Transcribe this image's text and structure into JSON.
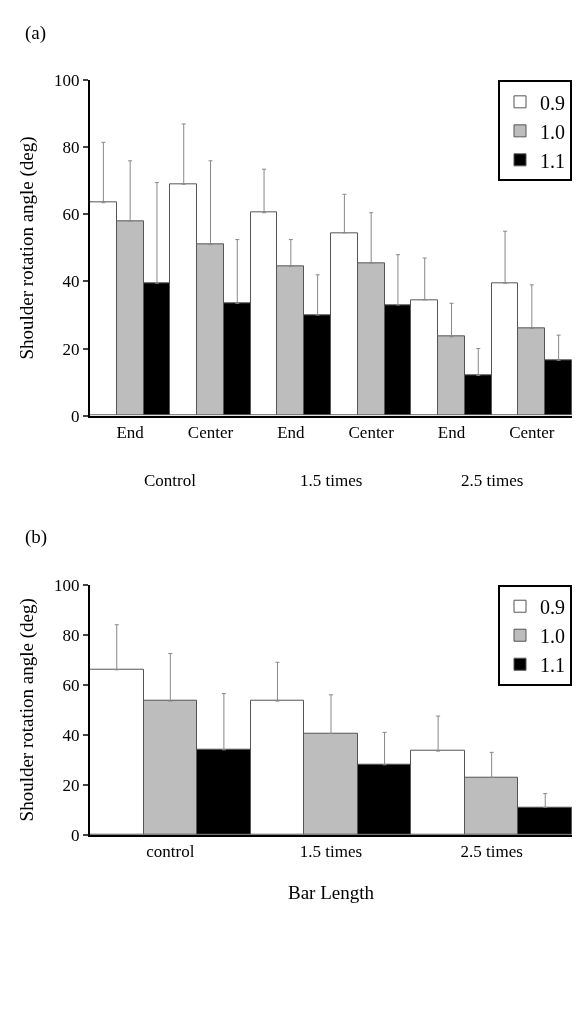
{
  "chart_data": [
    {
      "type": "bar",
      "title": "(a)",
      "ylabel": "Shoulder rotation angle (deg)",
      "categories": [
        "End",
        "Center",
        "End",
        "Center",
        "End",
        "Center"
      ],
      "series": [
        {
          "name": "0.9",
          "color": "#ffffff",
          "values": [
            63.5,
            69,
            60.5,
            54.5,
            34.5,
            39.5
          ],
          "errors": [
            [
              63.5,
              81.5
            ],
            [
              69,
              87
            ],
            [
              60.5,
              73.5
            ],
            [
              54.5,
              66
            ],
            [
              34.5,
              47
            ],
            [
              39.5,
              55
            ]
          ]
        },
        {
          "name": "1.0",
          "color": "#bdbdbd",
          "values": [
            58,
            51,
            44.5,
            45.5,
            23.5,
            26
          ],
          "errors": [
            [
              58,
              76
            ],
            [
              51,
              76
            ],
            [
              44.5,
              52.5
            ],
            [
              45.5,
              60.5
            ],
            [
              23.5,
              33.5
            ],
            [
              26,
              39
            ]
          ]
        },
        {
          "name": "1.1",
          "color": "#000000",
          "values": [
            39.5,
            33.5,
            30,
            33,
            12,
            16.5
          ],
          "errors": [
            [
              39.5,
              69.5
            ],
            [
              33.5,
              52.5
            ],
            [
              30,
              42
            ],
            [
              33,
              48
            ],
            [
              12,
              20
            ],
            [
              16.5,
              24
            ]
          ]
        }
      ],
      "annotations": [
        "Control",
        "1.5 times",
        "2.5 times"
      ],
      "ylim": [
        0,
        100
      ],
      "yticks": [
        0,
        20,
        40,
        60,
        80,
        100
      ],
      "legend": "top right"
    },
    {
      "type": "bar",
      "title": "(b)",
      "ylabel": "Shoulder rotation angle (deg)",
      "xlabel": "Bar Length",
      "categories": [
        "control",
        "1.5 times",
        "2.5 times"
      ],
      "series": [
        {
          "name": "0.9",
          "color": "#ffffff",
          "values": [
            66,
            53.5,
            33.5
          ],
          "errors": [
            [
              66,
              84
            ],
            [
              53.5,
              69
            ],
            [
              33.5,
              47.5
            ]
          ]
        },
        {
          "name": "1.0",
          "color": "#bdbdbd",
          "values": [
            53.5,
            40.5,
            23
          ],
          "errors": [
            [
              53.5,
              72.5
            ],
            [
              40.5,
              56
            ],
            [
              23,
              33
            ]
          ]
        },
        {
          "name": "1.1",
          "color": "#000000",
          "values": [
            34,
            28,
            11
          ],
          "errors": [
            [
              34,
              56.5
            ],
            [
              28,
              41
            ],
            [
              11,
              16.5
            ]
          ]
        }
      ],
      "ylim": [
        0,
        100
      ],
      "yticks": [
        0,
        20,
        40,
        60,
        80,
        100
      ],
      "legend": "top right"
    }
  ]
}
